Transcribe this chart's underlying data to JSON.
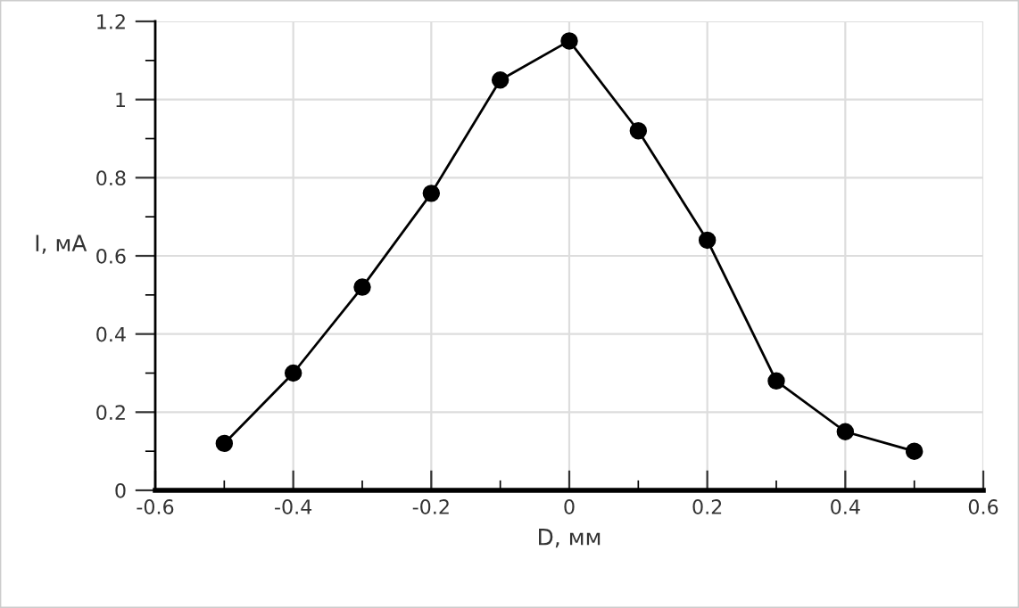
{
  "chart_data": {
    "type": "line",
    "xlabel": "D, мм",
    "ylabel": "I, мА",
    "x": [
      -0.5,
      -0.4,
      -0.3,
      -0.2,
      -0.1,
      0,
      0.1,
      0.2,
      0.3,
      0.4,
      0.5
    ],
    "series": [
      {
        "color": "#000000",
        "values": [
          0.12,
          0.3,
          0.52,
          0.76,
          1.05,
          1.15,
          0.92,
          0.64,
          0.28,
          0.15,
          0.1
        ]
      }
    ],
    "xlim": [
      -0.6,
      0.6
    ],
    "ylim": [
      0,
      1.2
    ],
    "xticks": [
      -0.6,
      -0.4,
      -0.2,
      0,
      0.2,
      0.4,
      0.6
    ],
    "yticks": [
      0,
      0.2,
      0.4,
      0.6,
      0.8,
      1,
      1.2
    ],
    "grid": true,
    "marker": "circle",
    "line_style": "solid"
  }
}
